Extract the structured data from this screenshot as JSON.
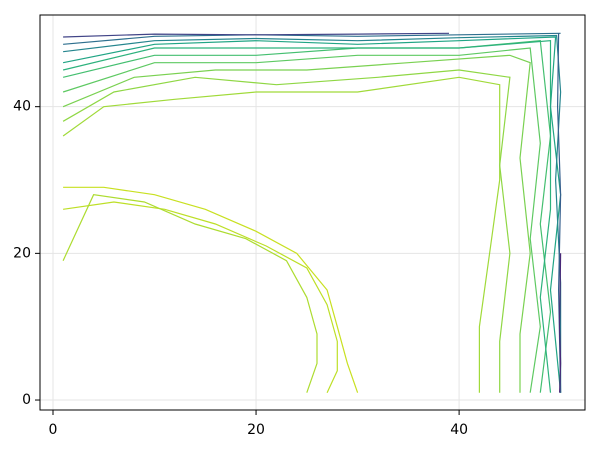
{
  "chart_data": {
    "type": "contour",
    "xlim": [
      -1.28,
      52.4
    ],
    "ylim": [
      -1.36,
      52.5
    ],
    "xticks": [
      0,
      20,
      40
    ],
    "yticks": [
      0,
      20,
      40
    ],
    "grid": true,
    "series": [
      {
        "color": "#c8e020",
        "x": [
          1,
          5,
          10,
          15,
          20,
          24,
          27,
          28,
          29,
          30
        ],
        "y": [
          29,
          29,
          28,
          26,
          23,
          20,
          15,
          10,
          5,
          1
        ]
      },
      {
        "color": "#bddf26",
        "x": [
          1,
          6,
          11,
          16,
          21,
          25,
          27,
          28,
          28,
          27
        ],
        "y": [
          26,
          27,
          26,
          24,
          21,
          18,
          13,
          8,
          4,
          1
        ]
      },
      {
        "color": "#addc30",
        "x": [
          1,
          4,
          9,
          14,
          19,
          23,
          25,
          26,
          26,
          25
        ],
        "y": [
          19,
          28,
          27,
          24,
          22,
          19,
          14,
          9,
          5,
          1
        ]
      },
      {
        "color": "#a0da39",
        "x": [
          1,
          5,
          12,
          20,
          30,
          40,
          44,
          44,
          43,
          42,
          42
        ],
        "y": [
          36,
          40,
          41,
          42,
          42,
          44,
          43,
          30,
          20,
          10,
          1
        ]
      },
      {
        "color": "#8fd744",
        "x": [
          1,
          6,
          14,
          22,
          32,
          40,
          45,
          44,
          45,
          44,
          44
        ],
        "y": [
          38,
          42,
          44,
          43,
          44,
          45,
          44,
          32,
          20,
          8,
          1
        ]
      },
      {
        "color": "#7ad151",
        "x": [
          1,
          8,
          16,
          25,
          35,
          45,
          47,
          46,
          47,
          46,
          46
        ],
        "y": [
          40,
          44,
          45,
          45,
          46,
          47,
          46,
          33,
          20,
          9,
          1
        ]
      },
      {
        "color": "#5ec962",
        "x": [
          1,
          10,
          20,
          30,
          40,
          47,
          48,
          47,
          48,
          47
        ],
        "y": [
          42,
          46,
          46,
          47,
          47,
          48,
          35,
          22,
          10,
          1
        ]
      },
      {
        "color": "#44bf70",
        "x": [
          1,
          10,
          20,
          30,
          40,
          48,
          49,
          48,
          49,
          48
        ],
        "y": [
          44,
          47,
          47,
          48,
          48,
          49,
          36,
          24,
          12,
          1
        ]
      },
      {
        "color": "#2db27d",
        "x": [
          1,
          10,
          20,
          30,
          40,
          49,
          49,
          49,
          48,
          49
        ],
        "y": [
          45,
          48,
          48,
          48,
          48,
          49,
          38,
          26,
          14,
          1
        ]
      },
      {
        "color": "#21a585",
        "x": [
          1,
          10,
          20,
          30,
          40,
          49.5,
          49,
          50,
          49,
          50
        ],
        "y": [
          46,
          48.5,
          49,
          48.5,
          49,
          49.5,
          40,
          28,
          15,
          1
        ]
      },
      {
        "color": "#25858e",
        "x": [
          1,
          10,
          20,
          30,
          40,
          49.6,
          50,
          49.5,
          50,
          50
        ],
        "y": [
          47.5,
          49,
          49.3,
          49,
          49.4,
          49.7,
          42,
          30,
          16,
          1
        ]
      },
      {
        "color": "#2e6f8e",
        "x": [
          1,
          10,
          20,
          30,
          40,
          50
        ],
        "y": [
          48.5,
          49.6,
          49.8,
          49.6,
          49.8,
          50
        ]
      },
      {
        "color": "#355f8d",
        "x": [
          49.8,
          49.7,
          50,
          49.8,
          50
        ],
        "y": [
          50,
          40,
          28,
          15,
          1
        ]
      },
      {
        "color": "#414487",
        "x": [
          1,
          10,
          20,
          30,
          39
        ],
        "y": [
          49.5,
          49.9,
          49.8,
          49.9,
          50
        ]
      },
      {
        "color": "#482878",
        "x": [
          50,
          49.9,
          50,
          49.9
        ],
        "y": [
          20,
          10,
          5,
          1
        ]
      }
    ]
  }
}
